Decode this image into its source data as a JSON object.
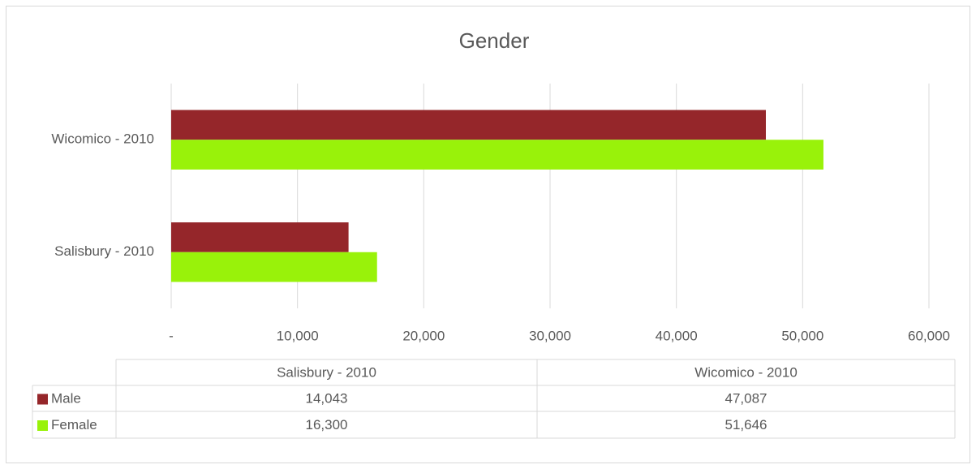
{
  "chart_data": {
    "type": "hbar",
    "title": "Gender",
    "categories": [
      "Salisbury - 2010",
      "Wicomico - 2010"
    ],
    "series": [
      {
        "name": "Male",
        "color": "#95262a",
        "values": [
          14043,
          47087
        ],
        "value_labels": [
          "14,043",
          "47,087"
        ]
      },
      {
        "name": "Female",
        "color": "#99f20a",
        "values": [
          16300,
          51646
        ],
        "value_labels": [
          "16,300",
          "51,646"
        ]
      }
    ],
    "xlim": [
      0,
      60000
    ],
    "xticks": [
      {
        "value": 0,
        "label": "-"
      },
      {
        "value": 10000,
        "label": "10,000"
      },
      {
        "value": 20000,
        "label": "20,000"
      },
      {
        "value": 30000,
        "label": "30,000"
      },
      {
        "value": 40000,
        "label": "40,000"
      },
      {
        "value": 50000,
        "label": "50,000"
      },
      {
        "value": 60000,
        "label": "60,000"
      }
    ],
    "grid": true,
    "data_table": true
  }
}
